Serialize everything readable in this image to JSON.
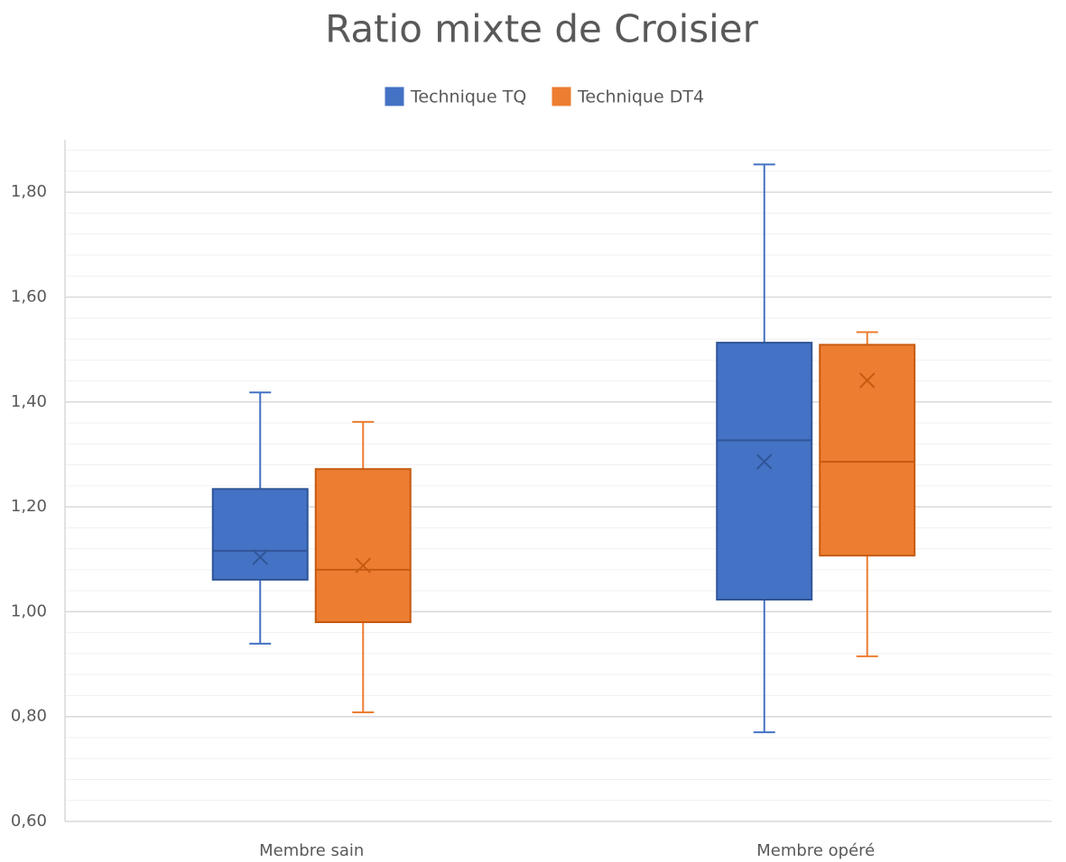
{
  "chart_data": {
    "type": "box",
    "title": "Ratio mixte de Croisier",
    "categories": [
      "Membre sain",
      "Membre opéré"
    ],
    "series": [
      {
        "name": "Technique TQ",
        "color": "#4472c4",
        "min": [
          0.939,
          0.77
        ],
        "q1": [
          1.061,
          1.023
        ],
        "median": [
          1.116,
          1.327
        ],
        "q3": [
          1.234,
          1.513
        ],
        "max": [
          1.418,
          1.853
        ],
        "mean": [
          1.104,
          1.286
        ]
      },
      {
        "name": "Technique DT4",
        "color": "#ed7d31",
        "min": [
          0.808,
          0.915
        ],
        "q1": [
          0.98,
          1.107
        ],
        "median": [
          1.08,
          1.286
        ],
        "q3": [
          1.272,
          1.509
        ],
        "max": [
          1.362,
          1.533
        ],
        "mean": [
          1.088,
          1.441
        ]
      }
    ],
    "ylim": [
      0.6,
      1.9
    ],
    "yticks": [
      {
        "value": 0.6,
        "label": "0,60"
      },
      {
        "value": 0.8,
        "label": "0,80"
      },
      {
        "value": 1.0,
        "label": "1,00"
      },
      {
        "value": 1.2,
        "label": "1,20"
      },
      {
        "value": 1.4,
        "label": "1,40"
      },
      {
        "value": 1.6,
        "label": "1,60"
      },
      {
        "value": 1.8,
        "label": "1,80"
      }
    ],
    "minor_yticks": [
      0.64,
      0.68,
      0.72,
      0.76,
      0.84,
      0.88,
      0.92,
      0.96,
      1.04,
      1.08,
      1.12,
      1.16,
      1.24,
      1.28,
      1.32,
      1.36,
      1.44,
      1.48,
      1.52,
      1.56,
      1.64,
      1.68,
      1.72,
      1.76,
      1.84,
      1.88
    ],
    "grid": true,
    "legend": "top"
  }
}
